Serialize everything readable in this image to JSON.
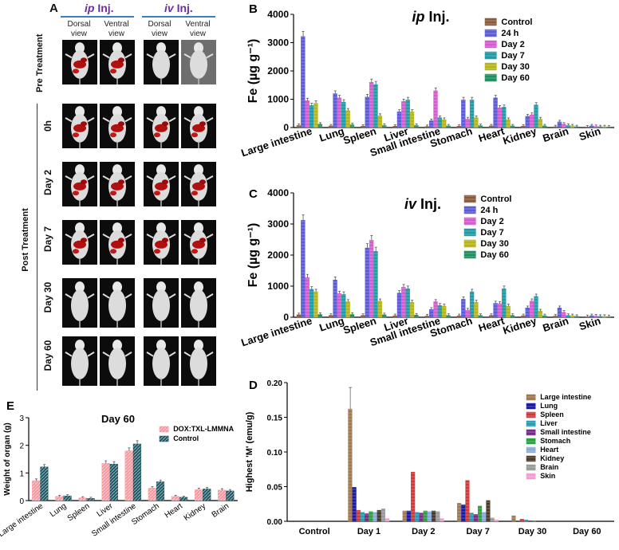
{
  "panels": {
    "A": {
      "letter": "A",
      "groups": [
        {
          "title_em": "ip",
          "title_rest": " Inj.",
          "views": [
            "Dorsal view",
            "Ventral view"
          ]
        },
        {
          "title_em": "iv",
          "title_rest": " Inj.",
          "views": [
            "Dorsal view",
            "Ventral view"
          ]
        }
      ],
      "pre_label": "Pre Treatment",
      "post_label": "Post Treatment",
      "rows": [
        "0h",
        "Day 2",
        "Day 7",
        "Day 30",
        "Day 60"
      ]
    }
  },
  "colors": {
    "series": [
      "#8b5a3c",
      "#5b5bd6",
      "#d65ad0",
      "#1f9aa6",
      "#b5b51a",
      "#1f8f60"
    ],
    "panelD": [
      "#a07850",
      "#1a1aa0",
      "#d03838",
      "#2a9ab0",
      "#7a2a8a",
      "#2aa040",
      "#8aaadc",
      "#4a3a2a",
      "#9a9a9a",
      "#f0a0d0"
    ],
    "panelE": [
      "#f09aa0",
      "#1f5560"
    ]
  },
  "chart_data": [
    {
      "id": "B",
      "letter": "B",
      "type": "bar",
      "title_em": "ip",
      "title_rest": " Inj.",
      "ylabel": "Fe (µg g⁻¹)",
      "ylim": [
        0,
        4000
      ],
      "yticks": [
        "0",
        "1000",
        "2000",
        "3000",
        "4000"
      ],
      "categories": [
        "Large intestine",
        "Lung",
        "Spleen",
        "Liver",
        "Small intestine",
        "Stomach",
        "Heart",
        "Kidney",
        "Brain",
        "Skin"
      ],
      "series": [
        {
          "name": "Control",
          "values": [
            80,
            60,
            50,
            50,
            40,
            50,
            60,
            50,
            30,
            20
          ]
        },
        {
          "name": "24 h",
          "values": [
            3220,
            1200,
            1080,
            560,
            240,
            980,
            1050,
            400,
            200,
            60
          ]
        },
        {
          "name": "Day 2",
          "values": [
            950,
            1050,
            1600,
            920,
            1300,
            300,
            700,
            450,
            120,
            40
          ]
        },
        {
          "name": "Day 7",
          "values": [
            780,
            900,
            1520,
            980,
            350,
            980,
            720,
            800,
            80,
            30
          ]
        },
        {
          "name": "Day 30",
          "values": [
            860,
            600,
            420,
            560,
            280,
            350,
            280,
            300,
            60,
            30
          ]
        },
        {
          "name": "Day 60",
          "values": [
            120,
            100,
            80,
            80,
            60,
            70,
            60,
            60,
            30,
            20
          ]
        }
      ]
    },
    {
      "id": "C",
      "letter": "C",
      "type": "bar",
      "title_em": "iv",
      "title_rest": " Inj.",
      "ylabel": "Fe (µg g⁻¹)",
      "ylim": [
        0,
        4000
      ],
      "yticks": [
        "0",
        "1000",
        "2000",
        "3000",
        "4000"
      ],
      "categories": [
        "Large intestine",
        "Lung",
        "Spleen",
        "Liver",
        "Small intestine",
        "Stomach",
        "Heart",
        "Kidney",
        "Brain",
        "Skin"
      ],
      "series": [
        {
          "name": "Control",
          "values": [
            80,
            60,
            60,
            50,
            40,
            50,
            60,
            50,
            40,
            20
          ]
        },
        {
          "name": "24 h",
          "values": [
            3120,
            1200,
            2230,
            780,
            250,
            580,
            450,
            300,
            300,
            50
          ]
        },
        {
          "name": "Day 2",
          "values": [
            1280,
            760,
            2480,
            970,
            500,
            230,
            440,
            520,
            160,
            40
          ]
        },
        {
          "name": "Day 7",
          "values": [
            900,
            740,
            2120,
            920,
            380,
            820,
            920,
            670,
            60,
            30
          ]
        },
        {
          "name": "Day 30",
          "values": [
            820,
            500,
            520,
            480,
            360,
            480,
            360,
            200,
            50,
            30
          ]
        },
        {
          "name": "Day 60",
          "values": [
            90,
            90,
            80,
            70,
            60,
            60,
            60,
            50,
            30,
            20
          ]
        }
      ]
    },
    {
      "id": "D",
      "letter": "D",
      "type": "bar",
      "title": "",
      "ylabel": "Highest 'M' (emu/g)",
      "ylim": [
        0,
        0.2
      ],
      "yticks": [
        "0.00",
        "0.05",
        "0.10",
        "0.15",
        "0.20"
      ],
      "categories": [
        "Control",
        "Day 1",
        "Day 2",
        "Day 7",
        "Day 30",
        "Day 60"
      ],
      "series": [
        {
          "name": "Large intestine",
          "values": [
            0.0,
            0.162,
            0.015,
            0.026,
            0.008,
            0.0
          ]
        },
        {
          "name": "Lung",
          "values": [
            0.0,
            0.049,
            0.015,
            0.024,
            0.0,
            0.0
          ]
        },
        {
          "name": "Spleen",
          "values": [
            0.0,
            0.016,
            0.071,
            0.059,
            0.003,
            0.0
          ]
        },
        {
          "name": "Liver",
          "values": [
            0.0,
            0.013,
            0.013,
            0.012,
            0.002,
            0.0
          ]
        },
        {
          "name": "Small intestine",
          "values": [
            0.0,
            0.011,
            0.012,
            0.01,
            0.001,
            0.0
          ]
        },
        {
          "name": "Stomach",
          "values": [
            0.0,
            0.014,
            0.015,
            0.022,
            0.001,
            0.0
          ]
        },
        {
          "name": "Heart",
          "values": [
            0.0,
            0.013,
            0.014,
            0.013,
            0.0,
            0.0
          ]
        },
        {
          "name": "Kidney",
          "values": [
            0.0,
            0.016,
            0.015,
            0.03,
            0.0,
            0.0
          ]
        },
        {
          "name": "Brain",
          "values": [
            0.0,
            0.018,
            0.014,
            0.005,
            0.0,
            0.0
          ]
        },
        {
          "name": "Skin",
          "values": [
            0.0,
            0.004,
            0.004,
            0.002,
            0.0,
            0.0
          ]
        }
      ]
    },
    {
      "id": "E",
      "letter": "E",
      "type": "bar",
      "title": "Day 60",
      "ylabel": "Weight of organ (g)",
      "ylim": [
        0,
        3
      ],
      "yticks": [
        "0",
        "1",
        "2",
        "3"
      ],
      "categories": [
        "Large intestine",
        "Lung",
        "Spleen",
        "Liver",
        "Small intestine",
        "Stomach",
        "Heart",
        "Kidney",
        "Brain"
      ],
      "series": [
        {
          "name": "DOX:TXL-LMMNA",
          "values": [
            0.72,
            0.15,
            0.1,
            1.35,
            1.8,
            0.45,
            0.15,
            0.4,
            0.38
          ]
        },
        {
          "name": "Control",
          "values": [
            1.22,
            0.17,
            0.08,
            1.32,
            2.05,
            0.68,
            0.12,
            0.42,
            0.35
          ]
        }
      ]
    }
  ]
}
